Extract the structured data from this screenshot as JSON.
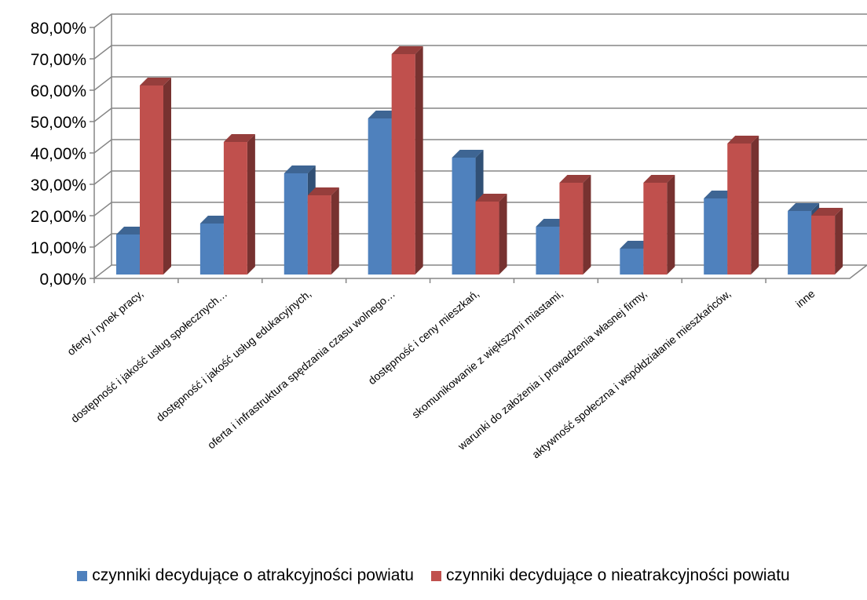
{
  "chart_data": {
    "type": "bar",
    "title": "",
    "xlabel": "",
    "ylabel": "",
    "ylim": [
      0,
      0.8
    ],
    "ytick_step": 0.1,
    "y_tick_labels": [
      "0,00%",
      "10,00%",
      "20,00%",
      "30,00%",
      "40,00%",
      "50,00%",
      "60,00%",
      "70,00%",
      "80,00%"
    ],
    "grid": true,
    "legend_position": "bottom",
    "categories": [
      "oferty i rynek pracy,",
      "dostępność i jakość usług społecznych…",
      "dostępność i jakość usług edukacyjnych,",
      "oferta i infrastruktura spędzania czasu wolnego…",
      "dostępność i ceny mieszkań,",
      "skomunikowanie z większymi miastami,",
      "warunki do założenia i prowadzenia własnej firmy,",
      "aktywność społeczna i współdziałanie mieszkańców,",
      "inne"
    ],
    "series": [
      {
        "name": "czynniki decydujące o atrakcyjności powiatu",
        "color": "#4F81BD",
        "values": [
          0.145,
          0.18,
          0.34,
          0.515,
          0.39,
          0.17,
          0.1,
          0.26,
          0.22
        ]
      },
      {
        "name": "czynniki decydujące o nieatrakcyjności powiatu",
        "color": "#C0504D",
        "values": [
          0.62,
          0.44,
          0.27,
          0.72,
          0.25,
          0.31,
          0.31,
          0.435,
          0.205
        ]
      }
    ]
  }
}
